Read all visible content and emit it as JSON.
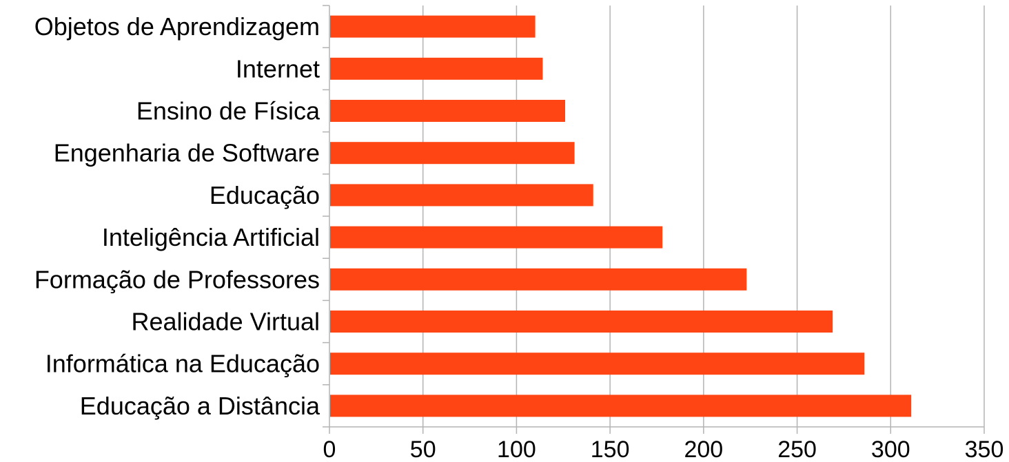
{
  "chart_data": {
    "type": "bar",
    "orientation": "horizontal",
    "categories": [
      "Objetos de Aprendizagem",
      "Internet",
      "Ensino de Física",
      "Engenharia de Software",
      "Educação",
      "Inteligência Artificial",
      "Formação de Professores",
      "Realidade Virtual",
      "Informática na Educação",
      "Educação a Distância"
    ],
    "values": [
      110,
      114,
      126,
      131,
      141,
      178,
      223,
      269,
      286,
      311
    ],
    "xlim": [
      0,
      350
    ],
    "x_ticks": [
      "0",
      "50",
      "100",
      "150",
      "200",
      "250",
      "300",
      "350"
    ],
    "x_tick_values": [
      0,
      50,
      100,
      150,
      200,
      250,
      300,
      350
    ],
    "grid": "vertical",
    "legend": "none",
    "title": "",
    "xlabel": "",
    "ylabel": "",
    "colors": {
      "bar": "#ff4514",
      "grid": "#b3b3b3",
      "axis": "#b3b3b3",
      "text": "#000000"
    }
  }
}
